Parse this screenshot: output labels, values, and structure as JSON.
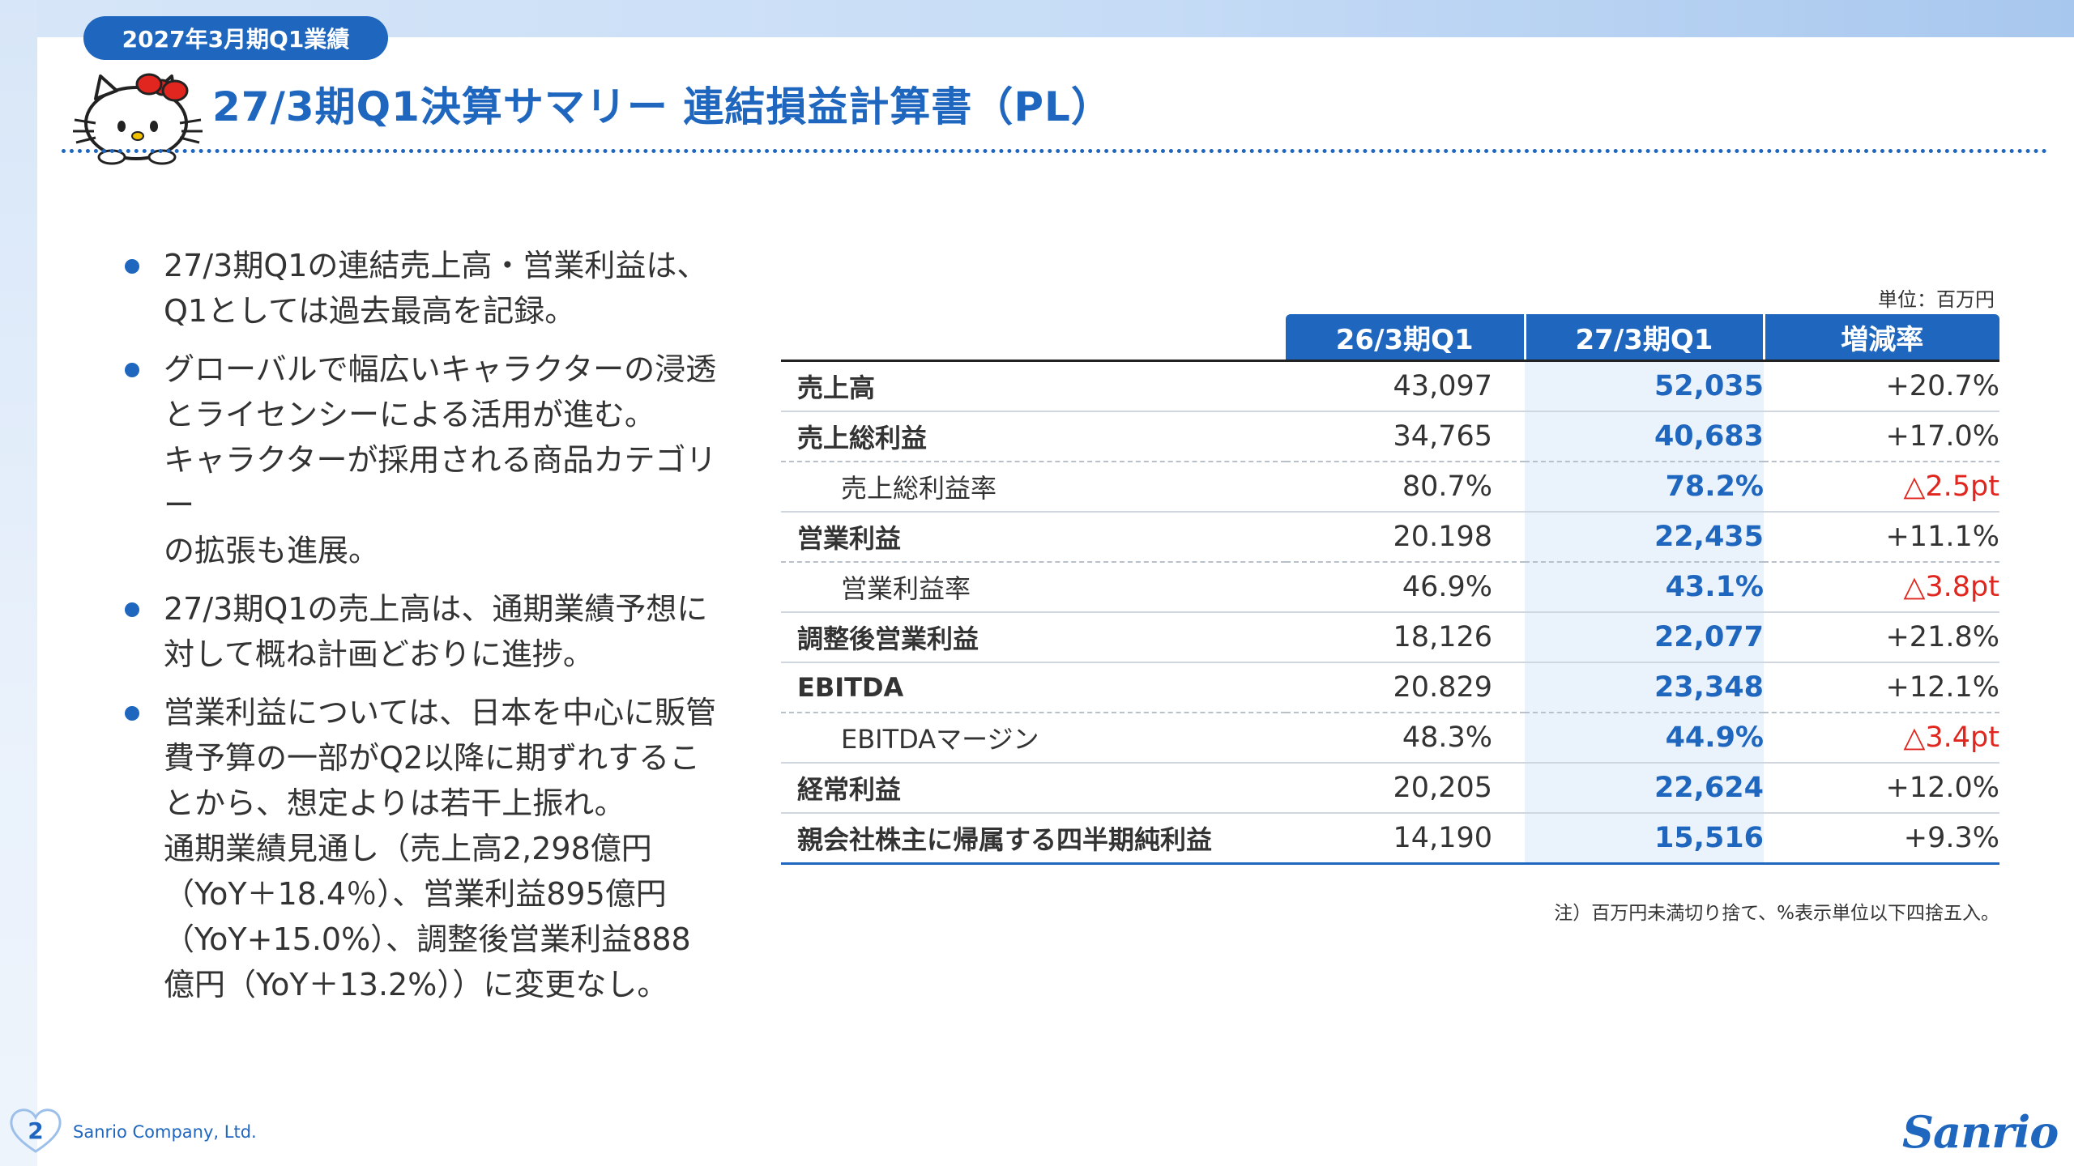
{
  "header": {
    "period_badge": "2027年3月期Q1業績",
    "title": "27/3期Q1決算サマリー 連結損益計算書（PL）"
  },
  "bullets": [
    "27/3期Q1の連結売上高・営業利益は、\nQ1としては過去最高を記録。",
    "グローバルで幅広いキャラクターの浸透\nとライセンシーによる活用が進む。\nキャラクターが採用される商品カテゴリー\nの拡張も進展。",
    "27/3期Q1の売上高は、通期業績予想に\n対して概ね計画どおりに進捗。",
    "営業利益については、日本を中心に販管\n費予算の一部がQ2以降に期ずれするこ\nとから、想定よりは若干上振れ。\n通期業績見通し（売上高2,298億円\n（YoY＋18.4％）、営業利益895億円\n（YoY+15.0%）、調整後営業利益888\n億円（YoY＋13.2%））に変更なし。"
  ],
  "table": {
    "unit": "単位：百万円",
    "columns": [
      "26/3期Q1",
      "27/3期Q1",
      "増減率"
    ],
    "rows": [
      {
        "label": "売上高",
        "prev": "43,097",
        "cur": "52,035",
        "chg": "+20.7%"
      },
      {
        "label": "売上総利益",
        "prev": "34,765",
        "cur": "40,683",
        "chg": "+17.0%"
      },
      {
        "label": "売上総利益率",
        "prev": "80.7%",
        "cur": "78.2%",
        "chg": "△2.5pt"
      },
      {
        "label": "営業利益",
        "prev": "20.198",
        "cur": "22,435",
        "chg": "+11.1%"
      },
      {
        "label": "営業利益率",
        "prev": "46.9%",
        "cur": "43.1%",
        "chg": "△3.8pt"
      },
      {
        "label": "調整後営業利益",
        "prev": "18,126",
        "cur": "22,077",
        "chg": "+21.8%"
      },
      {
        "label": "EBITDA",
        "prev": "20.829",
        "cur": "23,348",
        "chg": "+12.1%"
      },
      {
        "label": "EBITDAマージン",
        "prev": "48.3%",
        "cur": "44.9%",
        "chg": "△3.4pt"
      },
      {
        "label": "経常利益",
        "prev": "20,205",
        "cur": "22,624",
        "chg": "+12.0%"
      },
      {
        "label": "親会社株主に帰属する四半期純利益",
        "prev": "14,190",
        "cur": "15,516",
        "chg": "+9.3%"
      }
    ],
    "note": "注）百万円未満切り捨て、%表示単位以下四捨五入。"
  },
  "footer": {
    "page_number": "2",
    "company": "Sanrio Company, Ltd.",
    "logo": "Sanrio"
  },
  "colors": {
    "brand_blue": "#1f66be",
    "negative_red": "#e0261e",
    "highlight_column": "#eaf3fc"
  }
}
